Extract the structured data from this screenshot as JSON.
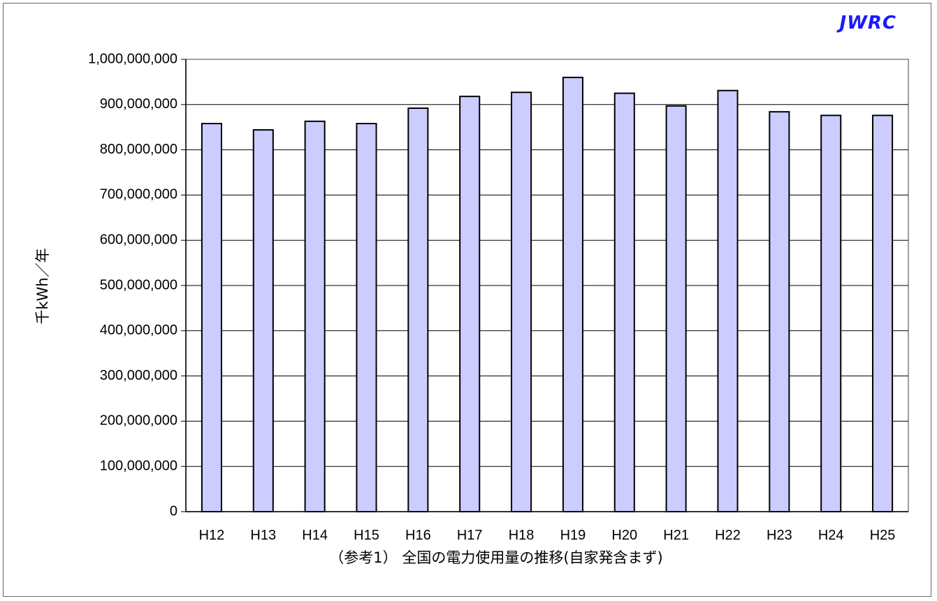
{
  "brand": {
    "label": "JWRC",
    "color": "#1a1aff"
  },
  "chart_data": {
    "type": "bar",
    "caption": "（参考1） 全国の電力使用量の推移(自家発含まず)",
    "xlabel": "",
    "ylabel": "千kWh／年",
    "ylim": [
      0,
      1000000000
    ],
    "yticks": [
      0,
      100000000,
      200000000,
      300000000,
      400000000,
      500000000,
      600000000,
      700000000,
      800000000,
      900000000,
      1000000000
    ],
    "ytick_labels": [
      "0",
      "100,000,000",
      "200,000,000",
      "300,000,000",
      "400,000,000",
      "500,000,000",
      "600,000,000",
      "700,000,000",
      "800,000,000",
      "900,000,000",
      "1,000,000,000"
    ],
    "categories": [
      "H12",
      "H13",
      "H14",
      "H15",
      "H16",
      "H17",
      "H18",
      "H19",
      "H20",
      "H21",
      "H22",
      "H23",
      "H24",
      "H25"
    ],
    "values": [
      858000000,
      844000000,
      863000000,
      858000000,
      892000000,
      918000000,
      927000000,
      960000000,
      925000000,
      897000000,
      931000000,
      884000000,
      876000000,
      876000000
    ],
    "grid": true,
    "legend": "none",
    "bar_color": "#ccccff",
    "bar_edge_color": "#000000"
  }
}
